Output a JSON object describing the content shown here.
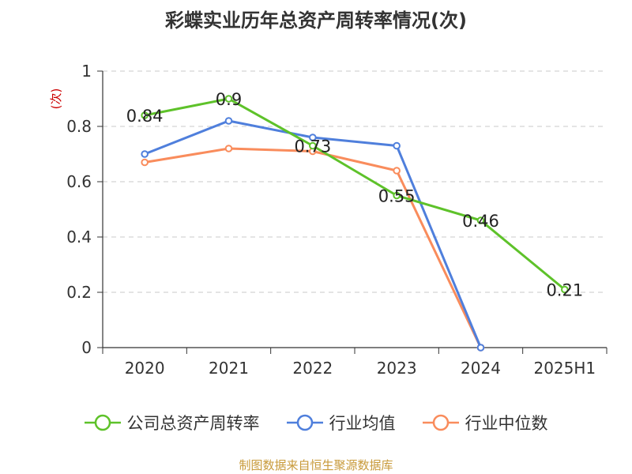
{
  "chart_data": {
    "type": "line",
    "title": "彩蝶实业历年总资产周转率情况(次)",
    "ylabel": "(次)",
    "categories": [
      "2020",
      "2021",
      "2022",
      "2023",
      "2024",
      "2025H1"
    ],
    "ylim": [
      0,
      1
    ],
    "yticks": [
      "0",
      "0.2",
      "0.4",
      "0.6",
      "0.8",
      "1"
    ],
    "grid": true,
    "legend_position": "bottom",
    "series": [
      {
        "name": "公司总资产周转率",
        "color": "#5ec22a",
        "values": [
          0.84,
          0.9,
          0.73,
          0.55,
          0.46,
          0.21
        ],
        "labels": [
          "0.84",
          "0.9",
          "0.73",
          "0.55",
          "0.46",
          "0.21"
        ]
      },
      {
        "name": "行业均值",
        "color": "#4f7fdc",
        "values": [
          0.7,
          0.82,
          0.76,
          0.73,
          0.0,
          null
        ]
      },
      {
        "name": "行业中位数",
        "color": "#f98c5c",
        "values": [
          0.67,
          0.72,
          0.71,
          0.64,
          0.0,
          null
        ]
      }
    ]
  },
  "footer": {
    "source": "制图数据来自恒生聚源数据库"
  }
}
